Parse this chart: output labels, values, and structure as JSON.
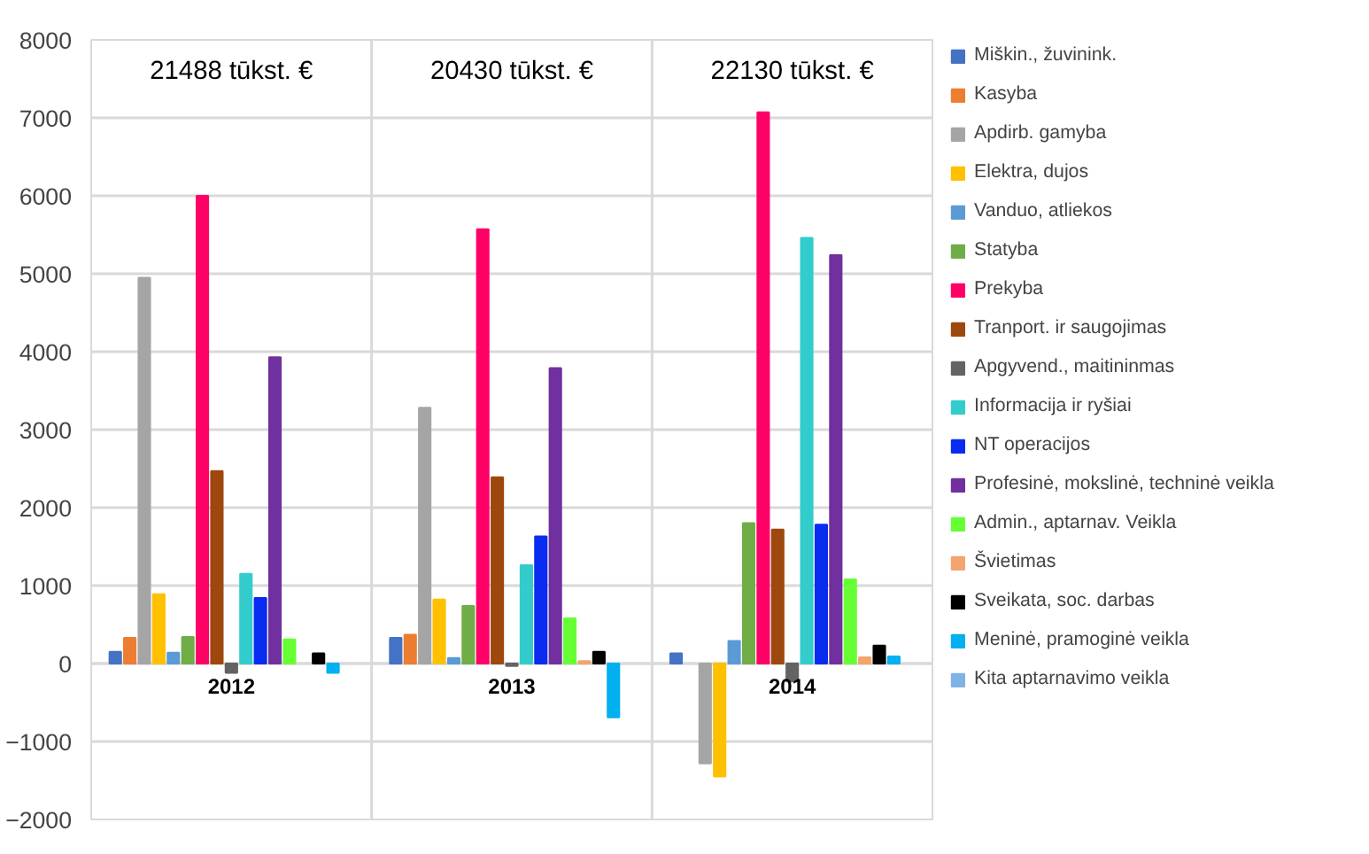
{
  "chart_data": {
    "type": "bar",
    "categories": [
      "2012",
      "2013",
      "2014"
    ],
    "series": [
      {
        "name": "Miškin., žuvinink.",
        "color": "#4472c4",
        "values": [
          150,
          330,
          130
        ]
      },
      {
        "name": "Kasyba",
        "color": "#ed7d31",
        "values": [
          330,
          370,
          null
        ]
      },
      {
        "name": "Apdirb. gamyba",
        "color": "#a5a5a5",
        "values": [
          4950,
          3280,
          -1280
        ]
      },
      {
        "name": "Elektra, dujos",
        "color": "#ffc000",
        "values": [
          890,
          820,
          -1450
        ]
      },
      {
        "name": "Vanduo, atliekos",
        "color": "#5b9bd5",
        "values": [
          140,
          70,
          290
        ]
      },
      {
        "name": "Statyba",
        "color": "#70ad47",
        "values": [
          340,
          740,
          1800
        ]
      },
      {
        "name": "Prekyba",
        "color": "#ff0066",
        "values": [
          6000,
          5570,
          7070
        ]
      },
      {
        "name": "Tranport. ir saugojimas",
        "color": "#9e480e",
        "values": [
          2470,
          2390,
          1720
        ]
      },
      {
        "name": "Apgyvend., maitininmas",
        "color": "#636363",
        "values": [
          -120,
          -30,
          -230
        ]
      },
      {
        "name": "Informacija ir ryšiai",
        "color": "#33cccc",
        "values": [
          1150,
          1260,
          5460
        ]
      },
      {
        "name": "NT operacijos",
        "color": "#0a2cf0",
        "values": [
          840,
          1630,
          1780
        ]
      },
      {
        "name": "Profesinė, mokslinė, techninė veikla",
        "color": "#7030a0",
        "values": [
          3930,
          3790,
          5240
        ]
      },
      {
        "name": "Admin., aptarnav. Veikla",
        "color": "#66ff33",
        "values": [
          310,
          580,
          1080
        ]
      },
      {
        "name": "Švietimas",
        "color": "#f4a46e",
        "values": [
          null,
          30,
          80
        ]
      },
      {
        "name": "Sveikata, soc. darbas",
        "color": "#000000",
        "values": [
          130,
          150,
          230
        ]
      },
      {
        "name": "Meninė, pramoginė veikla",
        "color": "#00b0f0",
        "values": [
          -120,
          -690,
          90
        ]
      },
      {
        "name": "Kita aptarnavimo veikla",
        "color": "#7fb2e5",
        "values": [
          null,
          null,
          null
        ]
      }
    ],
    "annotations": [
      "21488 tūkst. €",
      "20430 tūkst. €",
      "22130 tūkst. €"
    ],
    "ylim": [
      -2000,
      8000
    ],
    "yticks": [
      -2000,
      -1000,
      0,
      1000,
      2000,
      3000,
      4000,
      5000,
      6000,
      7000,
      8000
    ],
    "grid": true,
    "legend": "right"
  }
}
